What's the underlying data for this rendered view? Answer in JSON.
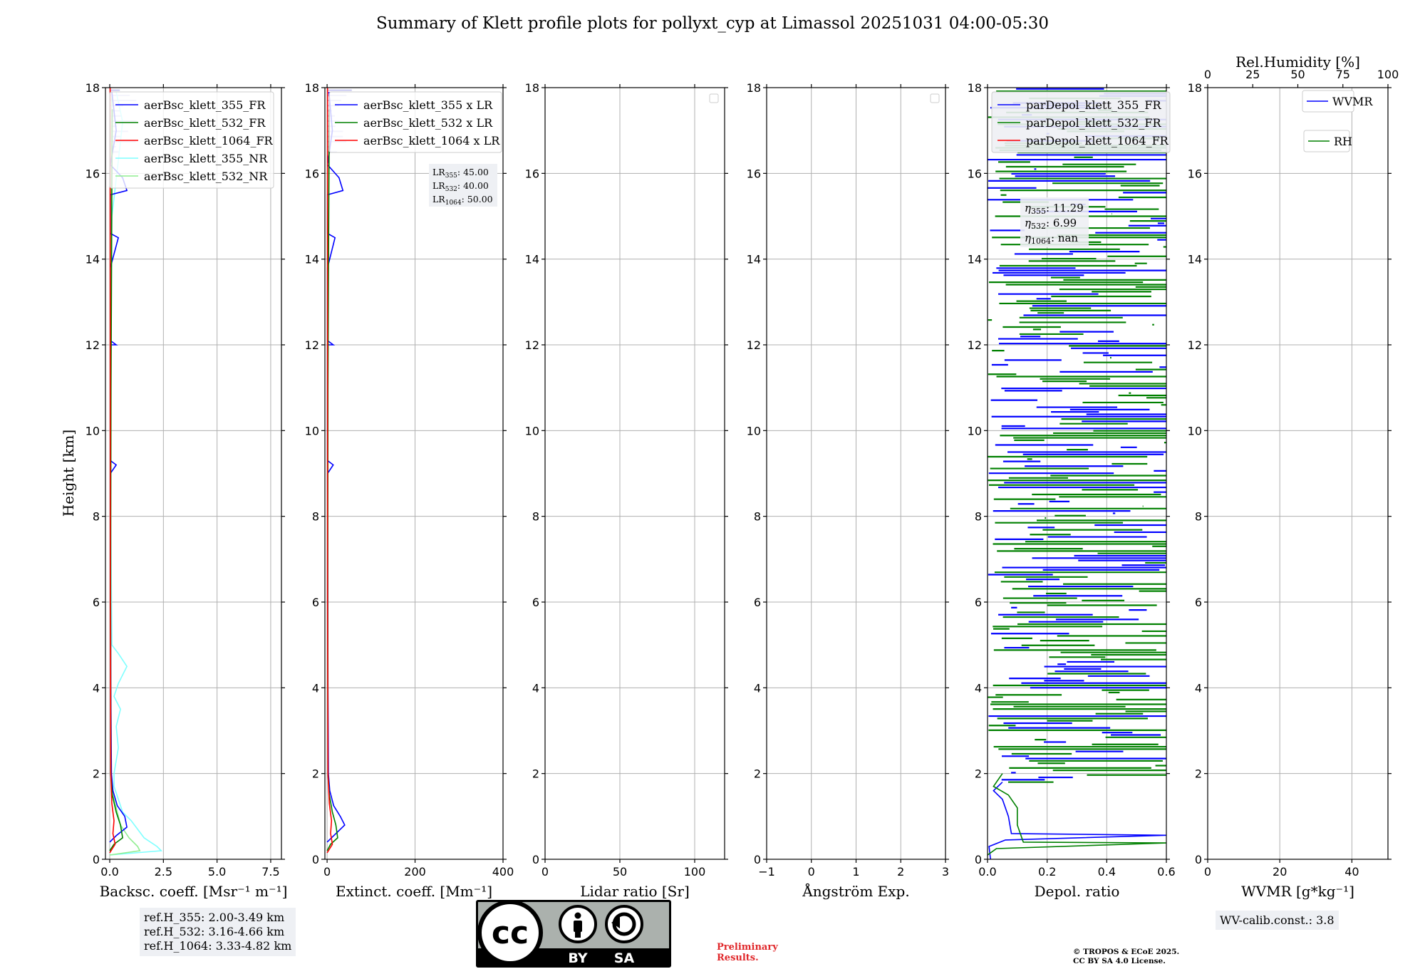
{
  "figure": {
    "title": "Summary of Klett profile plots for pollyxt_cyp at Limassol 20251031 04:00-05:30",
    "ylabel": "Height [km]",
    "ref_heights": [
      "ref.H_355: 2.00-3.49 km",
      "ref.H_532: 3.16-4.66 km",
      "ref.H_1064: 3.33-4.82 km"
    ],
    "preliminary": [
      "Preliminary",
      "Results."
    ],
    "copyright": [
      "© TROPOS & ECoE 2025.",
      "CC BY SA 4.0 License."
    ],
    "wv_calib": "WV-calib.const.: 3.8",
    "license_badge": {
      "icon": "cc-by-sa-icon",
      "labels": [
        "cc",
        "BY",
        "SA"
      ]
    }
  },
  "colors": {
    "blue": "#0000ff",
    "green": "#008000",
    "red": "#ff0000",
    "cyan": "#7fffff",
    "lightgreen": "#90ee90",
    "grid": "#b0b0b0",
    "lavender": "#c8c8f0",
    "legendbg": "#eef0f4"
  },
  "chart_data": [
    {
      "type": "line",
      "id": "backscatter",
      "xlabel": "Backsc. coeff. [Msr⁻¹ m⁻¹]",
      "xlim": [
        -0.2,
        8
      ],
      "ylim": [
        0,
        18
      ],
      "xticks": [
        0,
        2.5,
        5,
        7.5
      ],
      "xticklabels": [
        "0.0",
        "2.5",
        "5.0",
        "7.5"
      ],
      "yticks": [
        0,
        2,
        4,
        6,
        8,
        10,
        12,
        14,
        16,
        18
      ],
      "legend": [
        "aerBsc_klett_355_FR",
        "aerBsc_klett_532_FR",
        "aerBsc_klett_1064_FR",
        "aerBsc_klett_355_NR",
        "aerBsc_klett_532_NR"
      ],
      "legend_colors": [
        "#0000ff",
        "#008000",
        "#ff0000",
        "#7fffff",
        "#90ee90"
      ],
      "series": [
        {
          "name": "aerBsc_klett_355_NR",
          "color": "#7fffff",
          "points": [
            [
              0,
              0.1
            ],
            [
              1.2,
              0.15
            ],
            [
              2.4,
              0.2
            ],
            [
              2.2,
              0.3
            ],
            [
              1.6,
              0.5
            ],
            [
              1.0,
              0.9
            ],
            [
              0.6,
              1.1
            ],
            [
              0.4,
              1.4
            ],
            [
              0.2,
              1.7
            ],
            [
              0.2,
              2
            ],
            [
              0.4,
              2.6
            ],
            [
              0.3,
              3.1
            ],
            [
              0.5,
              3.5
            ],
            [
              0.2,
              3.8
            ],
            [
              0.4,
              4.1
            ],
            [
              0.8,
              4.5
            ],
            [
              0.4,
              4.8
            ],
            [
              0.1,
              5
            ],
            [
              0.05,
              8
            ],
            [
              0.05,
              12
            ],
            [
              0.1,
              15
            ],
            [
              0.4,
              16.3
            ],
            [
              0.6,
              17.2
            ],
            [
              0.3,
              17.9
            ]
          ]
        },
        {
          "name": "aerBsc_klett_532_NR",
          "color": "#90ee90",
          "points": [
            [
              0,
              0.1
            ],
            [
              1.4,
              0.2
            ],
            [
              1.3,
              0.3
            ],
            [
              0.9,
              0.5
            ],
            [
              0.5,
              0.8
            ],
            [
              0.3,
              1.2
            ],
            [
              0.1,
              1.6
            ],
            [
              0.05,
              2
            ],
            [
              0.05,
              5
            ],
            [
              0.03,
              10
            ],
            [
              0.05,
              16
            ],
            [
              0.1,
              17.8
            ]
          ]
        },
        {
          "name": "aerBsc_klett_355_FR",
          "color": "#0000ff",
          "points": [
            [
              0,
              0.4
            ],
            [
              0.3,
              0.55
            ],
            [
              0.8,
              0.75
            ],
            [
              0.7,
              1.0
            ],
            [
              0.35,
              1.25
            ],
            [
              0.15,
              1.6
            ],
            [
              0.08,
              2
            ],
            [
              0.05,
              4
            ],
            [
              0.03,
              9
            ],
            [
              0.3,
              9.2
            ],
            [
              0.03,
              9.3
            ],
            [
              0.03,
              12
            ],
            [
              0.3,
              12
            ],
            [
              0.03,
              12.1
            ],
            [
              0.03,
              13.8
            ],
            [
              0.4,
              14.5
            ],
            [
              0.03,
              14.6
            ],
            [
              0.03,
              15.5
            ],
            [
              0.8,
              15.6
            ],
            [
              0.6,
              15.9
            ],
            [
              0.03,
              16.2
            ],
            [
              0.3,
              17
            ],
            [
              0.1,
              17.9
            ]
          ]
        },
        {
          "name": "aerBsc_klett_532_FR",
          "color": "#008000",
          "points": [
            [
              0,
              0.2
            ],
            [
              0.2,
              0.35
            ],
            [
              0.6,
              0.5
            ],
            [
              0.5,
              0.8
            ],
            [
              0.3,
              1.1
            ],
            [
              0.12,
              1.5
            ],
            [
              0.05,
              2
            ],
            [
              0.04,
              6
            ],
            [
              0.06,
              11
            ],
            [
              0.08,
              13.3
            ],
            [
              0.1,
              15.7
            ],
            [
              0.12,
              17.5
            ]
          ]
        },
        {
          "name": "aerBsc_klett_1064_FR",
          "color": "#ff0000",
          "points": [
            [
              0,
              0.15
            ],
            [
              0.25,
              0.35
            ],
            [
              0.15,
              0.6
            ],
            [
              0.2,
              0.9
            ],
            [
              0.1,
              1.3
            ],
            [
              0.05,
              2
            ],
            [
              0.03,
              6
            ],
            [
              0.02,
              18
            ]
          ]
        }
      ]
    },
    {
      "type": "line",
      "id": "extinction",
      "xlabel": "Extinct. coeff. [Mm⁻¹]",
      "xlim": [
        -5,
        400
      ],
      "ylim": [
        0,
        18
      ],
      "xticks": [
        0,
        200,
        400
      ],
      "xticklabels": [
        "0",
        "200",
        "400"
      ],
      "yticks": [
        0,
        2,
        4,
        6,
        8,
        10,
        12,
        14,
        16,
        18
      ],
      "legend": [
        "aerBsc_klett_355 x LR",
        "aerBsc_klett_532 x LR",
        "aerBsc_klett_1064 x LR"
      ],
      "legend_colors": [
        "#0000ff",
        "#008000",
        "#ff0000"
      ],
      "lidar_ratios": [
        "LR355: 45.00",
        "LR532: 40.00",
        "LR1064: 50.00"
      ],
      "series": [
        {
          "name": "aerBsc_klett_355 x LR",
          "color": "#0000ff",
          "points": [
            [
              0,
              0.4
            ],
            [
              15,
              0.55
            ],
            [
              40,
              0.8
            ],
            [
              30,
              1.0
            ],
            [
              15,
              1.25
            ],
            [
              6,
              1.6
            ],
            [
              3,
              2
            ],
            [
              2,
              4
            ],
            [
              1,
              9
            ],
            [
              14,
              9.2
            ],
            [
              1,
              9.3
            ],
            [
              1,
              12
            ],
            [
              14,
              12
            ],
            [
              1,
              12.1
            ],
            [
              1,
              13.8
            ],
            [
              18,
              14.5
            ],
            [
              1,
              14.6
            ],
            [
              1,
              15.5
            ],
            [
              36,
              15.6
            ],
            [
              27,
              15.9
            ],
            [
              1,
              16.2
            ],
            [
              12,
              17
            ],
            [
              4,
              17.9
            ]
          ]
        },
        {
          "name": "aerBsc_klett_532 x LR",
          "color": "#008000",
          "points": [
            [
              0,
              0.2
            ],
            [
              8,
              0.35
            ],
            [
              24,
              0.5
            ],
            [
              20,
              0.8
            ],
            [
              12,
              1.1
            ],
            [
              5,
              1.5
            ],
            [
              2,
              2
            ],
            [
              1.5,
              6
            ],
            [
              2,
              11
            ],
            [
              3,
              13.3
            ],
            [
              4,
              15.7
            ],
            [
              5,
              17.5
            ]
          ]
        },
        {
          "name": "aerBsc_klett_1064 x LR",
          "color": "#ff0000",
          "points": [
            [
              0,
              0.15
            ],
            [
              12,
              0.35
            ],
            [
              8,
              0.6
            ],
            [
              10,
              0.9
            ],
            [
              5,
              1.3
            ],
            [
              2,
              2
            ],
            [
              1,
              6
            ],
            [
              1,
              18
            ]
          ]
        }
      ]
    },
    {
      "type": "line",
      "id": "lidar_ratio",
      "xlabel": "Lidar ratio [Sr]",
      "xlim": [
        0,
        120
      ],
      "ylim": [
        0,
        18
      ],
      "xticks": [
        0,
        50,
        100
      ],
      "xticklabels": [
        "0",
        "50",
        "100"
      ],
      "yticks": [
        0,
        2,
        4,
        6,
        8,
        10,
        12,
        14,
        16,
        18
      ],
      "legend": [],
      "series": []
    },
    {
      "type": "line",
      "id": "angstrom",
      "xlabel": "Ångström Exp.",
      "xlim": [
        -1,
        3
      ],
      "ylim": [
        0,
        18
      ],
      "xticks": [
        -1,
        0,
        1,
        2,
        3
      ],
      "xticklabels": [
        "−1",
        "0",
        "1",
        "2",
        "3"
      ],
      "yticks": [
        0,
        2,
        4,
        6,
        8,
        10,
        12,
        14,
        16,
        18
      ],
      "legend": [],
      "series": []
    },
    {
      "type": "line",
      "id": "depol",
      "xlabel": "Depol. ratio",
      "xlim": [
        0,
        0.6
      ],
      "ylim": [
        0,
        18
      ],
      "xticks": [
        0,
        0.2,
        0.4,
        0.6
      ],
      "xticklabels": [
        "0.0",
        "0.2",
        "0.4",
        "0.6"
      ],
      "yticks": [
        0,
        2,
        4,
        6,
        8,
        10,
        12,
        14,
        16,
        18
      ],
      "legend": [
        "parDepol_klett_355_FR",
        "parDepol_klett_532_FR",
        "parDepol_klett_1064_FR"
      ],
      "legend_colors": [
        "#0000ff",
        "#008000",
        "#ff0000"
      ],
      "eta": [
        "η355: 11.29",
        "η532: 6.99",
        "η1064: nan"
      ],
      "series": [
        {
          "name": "parDepol_klett_355_FR",
          "color": "#0000ff",
          "points": [
            [
              0.01,
              0
            ],
            [
              0.005,
              0.3
            ],
            [
              0.06,
              0.45
            ],
            [
              0.6,
              0.56
            ],
            [
              0.08,
              0.6
            ],
            [
              0.07,
              1.0
            ],
            [
              0.05,
              1.4
            ],
            [
              0.02,
              1.6
            ],
            [
              0.05,
              1.8
            ]
          ]
        },
        {
          "name": "parDepol_klett_532_FR",
          "color": "#008000",
          "points": [
            [
              0,
              0.1
            ],
            [
              0.03,
              0.25
            ],
            [
              0.6,
              0.38
            ],
            [
              0.12,
              0.4
            ],
            [
              0.1,
              0.8
            ],
            [
              0.1,
              1.2
            ],
            [
              0.07,
              1.5
            ],
            [
              0.02,
              1.7
            ],
            [
              0.05,
              2
            ]
          ]
        }
      ],
      "noise_region": {
        "ymin": 1.8,
        "ymax": 18,
        "x_range": [
          0,
          0.6
        ]
      }
    },
    {
      "type": "line",
      "id": "wvmr",
      "xlabel": "WVMR [g*kg⁻¹]",
      "xlim": [
        0,
        50
      ],
      "ylim": [
        0,
        18
      ],
      "xticks": [
        0,
        20,
        40
      ],
      "xticklabels": [
        "0",
        "20",
        "40"
      ],
      "yticks": [
        0,
        2,
        4,
        6,
        8,
        10,
        12,
        14,
        16,
        18
      ],
      "top_axis": {
        "label": "Rel.Humidity [%]",
        "xlim": [
          0,
          100
        ],
        "xticks": [
          0,
          25,
          50,
          75,
          100
        ],
        "xticklabels": [
          "0",
          "25",
          "50",
          "75",
          "100"
        ]
      },
      "legend": [
        "WVMR",
        "RH"
      ],
      "legend_colors": [
        "#0000ff",
        "#008000"
      ],
      "series": []
    }
  ]
}
